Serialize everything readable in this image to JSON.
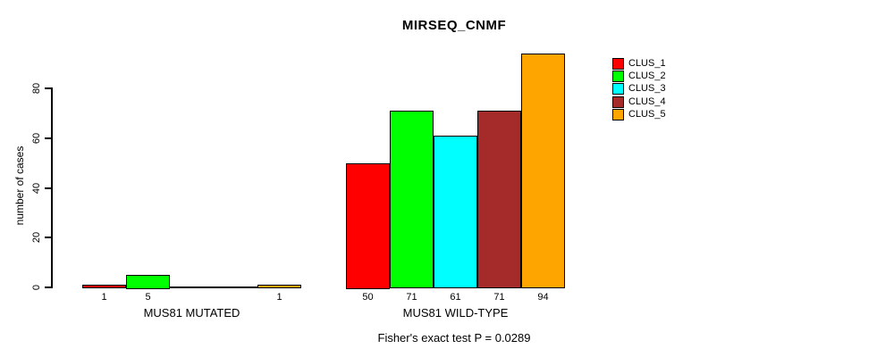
{
  "chart_data": {
    "type": "bar",
    "title": "MIRSEQ_CNMF",
    "ylabel": "number of cases",
    "ylim": [
      0,
      80
    ],
    "yticks": [
      0,
      20,
      40,
      60,
      80
    ],
    "grid": false,
    "legend_position": "topright",
    "series": [
      {
        "name": "CLUS_1",
        "color": "#FF0000"
      },
      {
        "name": "CLUS_2",
        "color": "#00FF00"
      },
      {
        "name": "CLUS_3",
        "color": "#00FFFF"
      },
      {
        "name": "CLUS_4",
        "color": "#A52A2A"
      },
      {
        "name": "CLUS_5",
        "color": "#FFA500"
      }
    ],
    "groups": [
      {
        "label": "MUS81 MUTATED",
        "values": [
          1,
          5,
          0,
          0,
          1
        ]
      },
      {
        "label": "MUS81 WILD-TYPE",
        "values": [
          50,
          71,
          61,
          71,
          94
        ]
      }
    ],
    "value_labels_shown_for_zero": false,
    "footer": "Fisher's exact test P = 0.0289"
  }
}
